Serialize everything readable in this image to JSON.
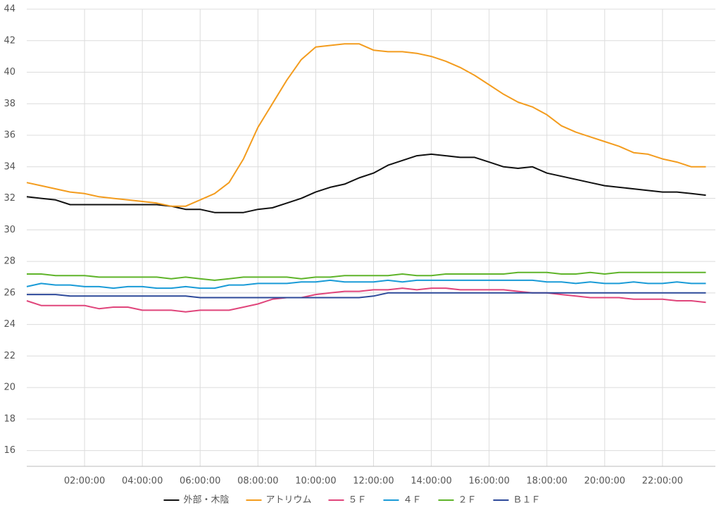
{
  "chart_data": {
    "type": "line",
    "x": [
      0,
      0.5,
      1,
      1.5,
      2,
      2.5,
      3,
      3.5,
      4,
      4.5,
      5,
      5.5,
      6,
      6.5,
      7,
      7.5,
      8,
      8.5,
      9,
      9.5,
      10,
      10.5,
      11,
      11.5,
      12,
      12.5,
      13,
      13.5,
      14,
      14.5,
      15,
      15.5,
      16,
      16.5,
      17,
      17.5,
      18,
      18.5,
      19,
      19.5,
      20,
      20.5,
      21,
      21.5,
      22,
      22.5,
      23,
      23.5
    ],
    "xlim": [
      0,
      23.83
    ],
    "xticks": [
      {
        "value": 2,
        "label": "02:00:00"
      },
      {
        "value": 4,
        "label": "04:00:00"
      },
      {
        "value": 6,
        "label": "06:00:00"
      },
      {
        "value": 8,
        "label": "08:00:00"
      },
      {
        "value": 10,
        "label": "10:00:00"
      },
      {
        "value": 12,
        "label": "12:00:00"
      },
      {
        "value": 14,
        "label": "14:00:00"
      },
      {
        "value": 16,
        "label": "16:00:00"
      },
      {
        "value": 18,
        "label": "18:00:00"
      },
      {
        "value": 20,
        "label": "20:00:00"
      },
      {
        "value": 22,
        "label": "22:00:00"
      }
    ],
    "ylim": [
      15,
      44
    ],
    "yticks": [
      16,
      18,
      20,
      22,
      24,
      26,
      28,
      30,
      32,
      34,
      36,
      38,
      40,
      42,
      44
    ],
    "grid": true,
    "legend": "bottom",
    "series": [
      {
        "name": "外部・木陰",
        "color": "#111111",
        "values": [
          32.1,
          32.0,
          31.9,
          31.6,
          31.6,
          31.6,
          31.6,
          31.6,
          31.6,
          31.6,
          31.5,
          31.3,
          31.3,
          31.1,
          31.1,
          31.1,
          31.3,
          31.4,
          31.7,
          32.0,
          32.4,
          32.7,
          32.9,
          33.3,
          33.6,
          34.1,
          34.4,
          34.7,
          34.8,
          34.7,
          34.6,
          34.6,
          34.3,
          34.0,
          33.9,
          34.0,
          33.6,
          33.4,
          33.2,
          33.0,
          32.8,
          32.7,
          32.6,
          32.5,
          32.4,
          32.4,
          32.3,
          32.2
        ]
      },
      {
        "name": "アトリウム",
        "color": "#f39c1e",
        "values": [
          33.0,
          32.8,
          32.6,
          32.4,
          32.3,
          32.1,
          32.0,
          31.9,
          31.8,
          31.7,
          31.5,
          31.5,
          31.9,
          32.3,
          33.0,
          34.5,
          36.5,
          38.0,
          39.5,
          40.8,
          41.6,
          41.7,
          41.8,
          41.8,
          41.4,
          41.3,
          41.3,
          41.2,
          41.0,
          40.7,
          40.3,
          39.8,
          39.2,
          38.6,
          38.1,
          37.8,
          37.3,
          36.6,
          36.2,
          35.9,
          35.6,
          35.3,
          34.9,
          34.8,
          34.5,
          34.3,
          34.0,
          34.0
        ]
      },
      {
        "name": "５Ｆ",
        "color": "#e0457b",
        "values": [
          25.5,
          25.2,
          25.2,
          25.2,
          25.2,
          25.0,
          25.1,
          25.1,
          24.9,
          24.9,
          24.9,
          24.8,
          24.9,
          24.9,
          24.9,
          25.1,
          25.3,
          25.6,
          25.7,
          25.7,
          25.9,
          26.0,
          26.1,
          26.1,
          26.2,
          26.2,
          26.3,
          26.2,
          26.3,
          26.3,
          26.2,
          26.2,
          26.2,
          26.2,
          26.1,
          26.0,
          26.0,
          25.9,
          25.8,
          25.7,
          25.7,
          25.7,
          25.6,
          25.6,
          25.6,
          25.5,
          25.5,
          25.4
        ]
      },
      {
        "name": "４Ｆ",
        "color": "#1a9bd7",
        "values": [
          26.4,
          26.6,
          26.5,
          26.5,
          26.4,
          26.4,
          26.3,
          26.4,
          26.4,
          26.3,
          26.3,
          26.4,
          26.3,
          26.3,
          26.5,
          26.5,
          26.6,
          26.6,
          26.6,
          26.7,
          26.7,
          26.8,
          26.7,
          26.7,
          26.7,
          26.8,
          26.7,
          26.8,
          26.8,
          26.8,
          26.8,
          26.8,
          26.8,
          26.8,
          26.8,
          26.8,
          26.7,
          26.7,
          26.6,
          26.7,
          26.6,
          26.6,
          26.7,
          26.6,
          26.6,
          26.7,
          26.6,
          26.6
        ]
      },
      {
        "name": "２Ｆ",
        "color": "#5fb42a",
        "values": [
          27.2,
          27.2,
          27.1,
          27.1,
          27.1,
          27.0,
          27.0,
          27.0,
          27.0,
          27.0,
          26.9,
          27.0,
          26.9,
          26.8,
          26.9,
          27.0,
          27.0,
          27.0,
          27.0,
          26.9,
          27.0,
          27.0,
          27.1,
          27.1,
          27.1,
          27.1,
          27.2,
          27.1,
          27.1,
          27.2,
          27.2,
          27.2,
          27.2,
          27.2,
          27.3,
          27.3,
          27.3,
          27.2,
          27.2,
          27.3,
          27.2,
          27.3,
          27.3,
          27.3,
          27.3,
          27.3,
          27.3,
          27.3
        ]
      },
      {
        "name": "Ｂ１Ｆ",
        "color": "#2e4a9a",
        "values": [
          25.9,
          25.9,
          25.9,
          25.8,
          25.8,
          25.8,
          25.8,
          25.8,
          25.8,
          25.8,
          25.8,
          25.8,
          25.7,
          25.7,
          25.7,
          25.7,
          25.7,
          25.7,
          25.7,
          25.7,
          25.7,
          25.7,
          25.7,
          25.7,
          25.8,
          26.0,
          26.0,
          26.0,
          26.0,
          26.0,
          26.0,
          26.0,
          26.0,
          26.0,
          26.0,
          26.0,
          26.0,
          26.0,
          26.0,
          26.0,
          26.0,
          26.0,
          26.0,
          26.0,
          26.0,
          26.0,
          26.0,
          26.0
        ]
      }
    ]
  }
}
